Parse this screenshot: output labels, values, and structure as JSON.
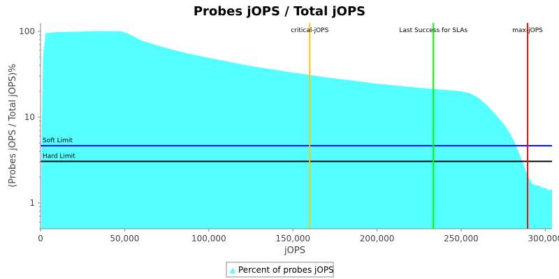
{
  "chart_data": {
    "type": "area",
    "title": "Probes jOPS / Total jOPS",
    "xlabel": "jOPS",
    "ylabel": "(Probes jOPS / Total jOPS)%",
    "xlim": [
      0,
      304000
    ],
    "ylim": [
      0.5,
      125
    ],
    "yscale": "log",
    "x_ticks": [
      0,
      50000,
      100000,
      150000,
      200000,
      250000,
      300000
    ],
    "x_tick_labels": [
      "0",
      "50,000",
      "100,000",
      "150,000",
      "200,000",
      "250,000",
      "300,000"
    ],
    "y_ticks": [
      1,
      10,
      100
    ],
    "y_tick_labels": [
      "1",
      "10",
      "100"
    ],
    "grid": false,
    "legend_position": "bottom-center",
    "colors": {
      "area": "#55ffff",
      "soft_limit": "#0000ff",
      "hard_limit": "#000000",
      "critical": "#ffc800",
      "last_success": "#00ff00",
      "max": "#ff0000"
    },
    "series": [
      {
        "name": "Percent of probes jOPS",
        "x": [
          500,
          1500,
          3000,
          10000,
          20000,
          30000,
          40000,
          48000,
          52000,
          56000,
          60000,
          70000,
          80000,
          90000,
          100000,
          110000,
          120000,
          130000,
          140000,
          150000,
          160000,
          170000,
          180000,
          190000,
          200000,
          210000,
          220000,
          230000,
          240000,
          250000,
          255000,
          260000,
          265000,
          270000,
          275000,
          279000,
          282000,
          284000,
          286000,
          288000,
          290000,
          292000,
          294000,
          296000,
          298000,
          300000,
          302000,
          304000
        ],
        "values": [
          3.5,
          50,
          95,
          98,
          99,
          100,
          100,
          100,
          94,
          86,
          78,
          68,
          60,
          54,
          49,
          45,
          41,
          38,
          35.5,
          33,
          31,
          29,
          27.5,
          26,
          24.5,
          23.5,
          22.5,
          21.5,
          20.8,
          20,
          19,
          17,
          14,
          11,
          8.5,
          6.5,
          5,
          4,
          3.2,
          2.5,
          2,
          1.7,
          1.6,
          1.6,
          1.5,
          1.5,
          1.4,
          1.45
        ]
      }
    ],
    "horizontal_lines": [
      {
        "label": "Soft Limit",
        "y": 4.65,
        "color": "#0000ff"
      },
      {
        "label": "Hard Limit",
        "y": 3.05,
        "color": "#000000"
      }
    ],
    "vertical_lines": [
      {
        "label": "critical-jOPS",
        "x": 160000,
        "color": "#ffc800"
      },
      {
        "label": "Last Success for SLAs",
        "x": 233500,
        "color": "#00ff00"
      },
      {
        "label": "max-jOPS",
        "x": 289500,
        "color": "#ff0000"
      }
    ],
    "legend": [
      {
        "label": "Percent of probes jOPS",
        "color": "#55ffff"
      }
    ]
  }
}
